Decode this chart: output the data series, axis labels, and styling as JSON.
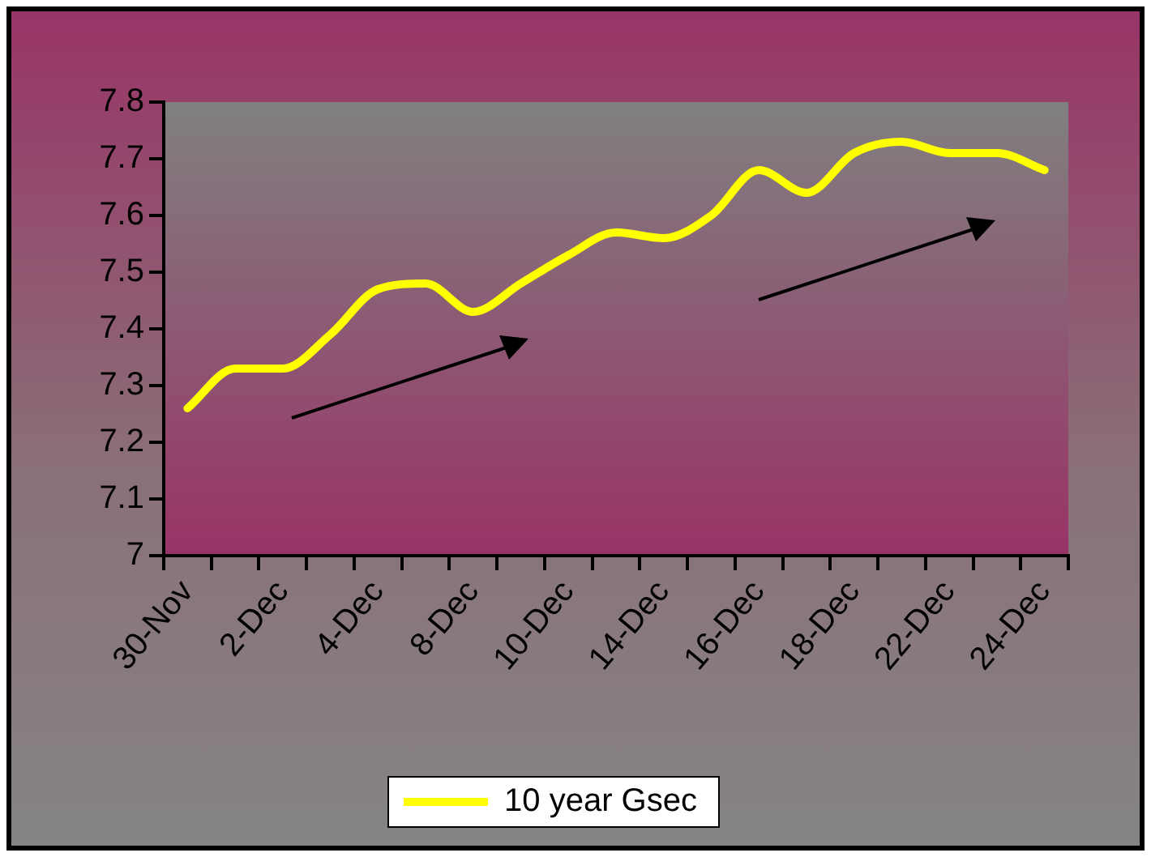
{
  "chart_data": {
    "type": "line",
    "categories": [
      "30-Nov",
      null,
      "2-Dec",
      null,
      "4-Dec",
      null,
      "8-Dec",
      null,
      "10-Dec",
      null,
      "14-Dec",
      null,
      "16-Dec",
      null,
      "18-Dec",
      null,
      "22-Dec",
      null,
      "24-Dec"
    ],
    "series": [
      {
        "name": "10 year Gsec",
        "color": "#ffff00",
        "values": [
          7.26,
          7.33,
          7.33,
          7.39,
          7.47,
          7.48,
          7.43,
          7.48,
          7.53,
          7.57,
          7.56,
          7.6,
          7.68,
          7.64,
          7.71,
          7.73,
          7.71,
          7.71,
          7.68
        ]
      }
    ],
    "ylim": [
      7,
      7.8
    ],
    "yticks": [
      7,
      7.1,
      7.2,
      7.3,
      7.4,
      7.5,
      7.6,
      7.7,
      7.8
    ],
    "grid": false,
    "legend": "bottom",
    "marker": "none",
    "line_style": "solid"
  }
}
